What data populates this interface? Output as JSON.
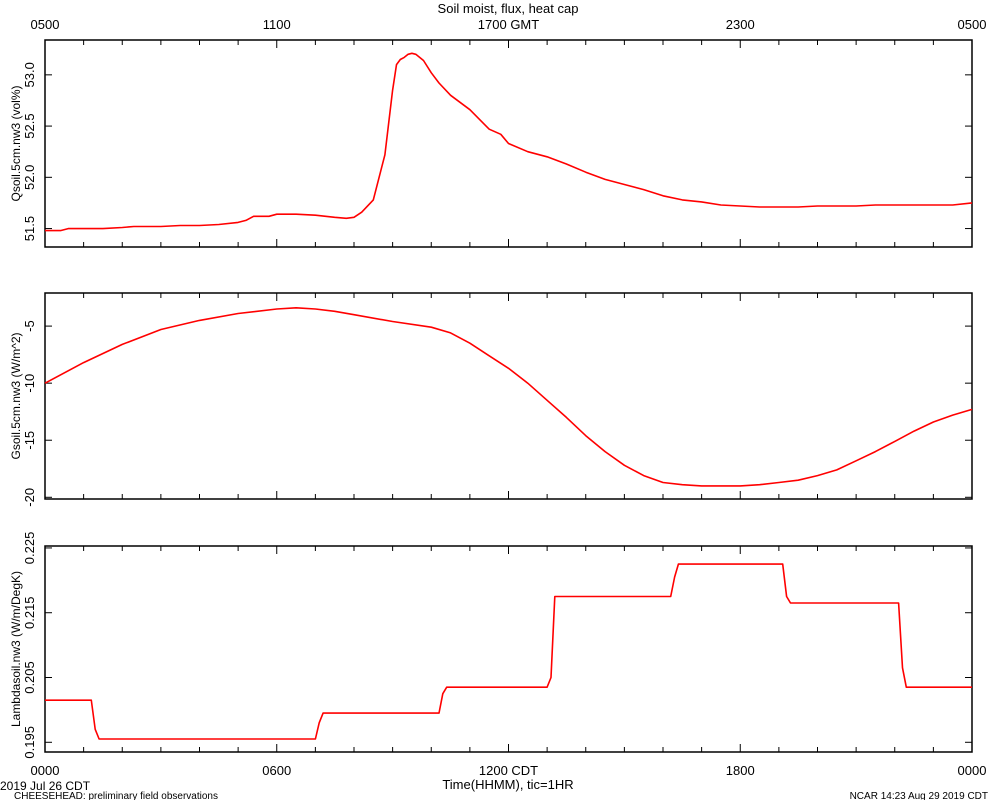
{
  "title": "Soil moist, flux, heat cap",
  "top_axis": {
    "tick_labels": [
      "0500",
      "1100",
      "1700 GMT",
      "2300",
      "0500"
    ],
    "tick_hours": [
      0,
      6,
      12,
      18,
      24
    ]
  },
  "bottom_axis": {
    "tick_labels": [
      "0000",
      "0600",
      "1200 CDT",
      "1800",
      "0000"
    ],
    "tick_hours": [
      0,
      6,
      12,
      18,
      24
    ],
    "xlabel": "Time(HHMM), tic=1HR"
  },
  "footer": {
    "date_label": "2019 Jul 26 CDT",
    "project_note": "CHEESEHEAD: preliminary field observations",
    "credit": "NCAR 14:23 Aug 29 2019 CDT"
  },
  "colors": {
    "series": "#ff0000",
    "axes": "#000000"
  },
  "chart_data": [
    {
      "type": "line",
      "ylabel": "Qsoil.5cm.nw3 (vol%)",
      "ylim": [
        51.32,
        53.34
      ],
      "yticks": [
        51.5,
        52.0,
        52.5,
        53.0
      ],
      "ytick_labels": [
        "51.5",
        "52.0",
        "52.5",
        "53.0"
      ],
      "series": [
        {
          "x": [
            0,
            0.4,
            0.6,
            1,
            1.5,
            2,
            2.3,
            3,
            3.5,
            4,
            4.5,
            5,
            5.2,
            5.4,
            5.8,
            6,
            6.5,
            7,
            7.5,
            7.8,
            8,
            8.2,
            8.5,
            8.8,
            9.0,
            9.1,
            9.2,
            9.3,
            9.4,
            9.5,
            9.6,
            9.8,
            10.0,
            10.2,
            10.5,
            11.0,
            11.5,
            11.8,
            12.0,
            12.5,
            13.0,
            13.5,
            14.0,
            14.5,
            15.0,
            15.5,
            16.0,
            16.5,
            17.0,
            17.5,
            18.0,
            18.5,
            19.0,
            19.5,
            20.0,
            20.5,
            21.0,
            21.5,
            22.0,
            22.5,
            23.0,
            23.5,
            24.0
          ],
          "y": [
            51.48,
            51.48,
            51.5,
            51.5,
            51.5,
            51.51,
            51.52,
            51.52,
            51.53,
            51.53,
            51.54,
            51.56,
            51.58,
            51.62,
            51.62,
            51.64,
            51.64,
            51.63,
            51.61,
            51.6,
            51.61,
            51.66,
            51.78,
            52.22,
            52.85,
            53.1,
            53.15,
            53.17,
            53.2,
            53.21,
            53.2,
            53.14,
            53.02,
            52.92,
            52.8,
            52.66,
            52.47,
            52.42,
            52.33,
            52.25,
            52.2,
            52.13,
            52.05,
            51.98,
            51.93,
            51.88,
            51.82,
            51.78,
            51.76,
            51.73,
            51.72,
            51.71,
            51.71,
            51.71,
            51.72,
            51.72,
            51.72,
            51.73,
            51.73,
            51.73,
            51.73,
            51.73,
            51.75
          ]
        }
      ]
    },
    {
      "type": "line",
      "ylabel": "Gsoil.5cm.nw3 (W/m^2)",
      "ylim": [
        -20.15,
        -2.1
      ],
      "yticks": [
        -20,
        -15,
        -10,
        -5
      ],
      "ytick_labels": [
        "-20",
        "-15",
        "-10",
        "-5"
      ],
      "series": [
        {
          "x": [
            0,
            1,
            2,
            3,
            4,
            5,
            6,
            6.5,
            7,
            7.5,
            8,
            9,
            10,
            10.5,
            11,
            11.5,
            12,
            12.5,
            13,
            13.5,
            14,
            14.5,
            15,
            15.5,
            16,
            16.5,
            17,
            17.5,
            18,
            18.5,
            19,
            19.5,
            20,
            20.5,
            21,
            21.5,
            22,
            22.5,
            23,
            23.5,
            24
          ],
          "y": [
            -10.0,
            -8.2,
            -6.6,
            -5.3,
            -4.5,
            -3.9,
            -3.5,
            -3.4,
            -3.5,
            -3.7,
            -4.0,
            -4.6,
            -5.1,
            -5.6,
            -6.5,
            -7.6,
            -8.7,
            -10.0,
            -11.5,
            -13.0,
            -14.6,
            -16.0,
            -17.2,
            -18.1,
            -18.7,
            -18.9,
            -19.0,
            -19.0,
            -19.0,
            -18.9,
            -18.7,
            -18.5,
            -18.1,
            -17.6,
            -16.8,
            -16.0,
            -15.1,
            -14.2,
            -13.4,
            -12.8,
            -12.3
          ]
        }
      ]
    },
    {
      "type": "line",
      "ylabel": "Lambdasoil.nw3 (W/m/DegK)",
      "ylim": [
        0.1935,
        0.2253
      ],
      "yticks": [
        0.195,
        0.205,
        0.215,
        0.225
      ],
      "ytick_labels": [
        "0.195",
        "0.205",
        "0.215",
        "0.225"
      ],
      "series": [
        {
          "x": [
            0,
            1.2,
            1.3,
            1.4,
            7.0,
            7.1,
            7.2,
            10.2,
            10.3,
            10.4,
            13.0,
            13.1,
            13.2,
            16.2,
            16.3,
            16.4,
            19.1,
            19.2,
            19.3,
            22.1,
            22.2,
            22.3,
            24.0
          ],
          "y": [
            0.2015,
            0.2015,
            0.197,
            0.1955,
            0.1955,
            0.198,
            0.1995,
            0.1995,
            0.2025,
            0.2035,
            0.2035,
            0.205,
            0.2175,
            0.2175,
            0.2205,
            0.2225,
            0.2225,
            0.2175,
            0.2165,
            0.2165,
            0.2065,
            0.2035,
            0.2035
          ]
        }
      ]
    }
  ]
}
